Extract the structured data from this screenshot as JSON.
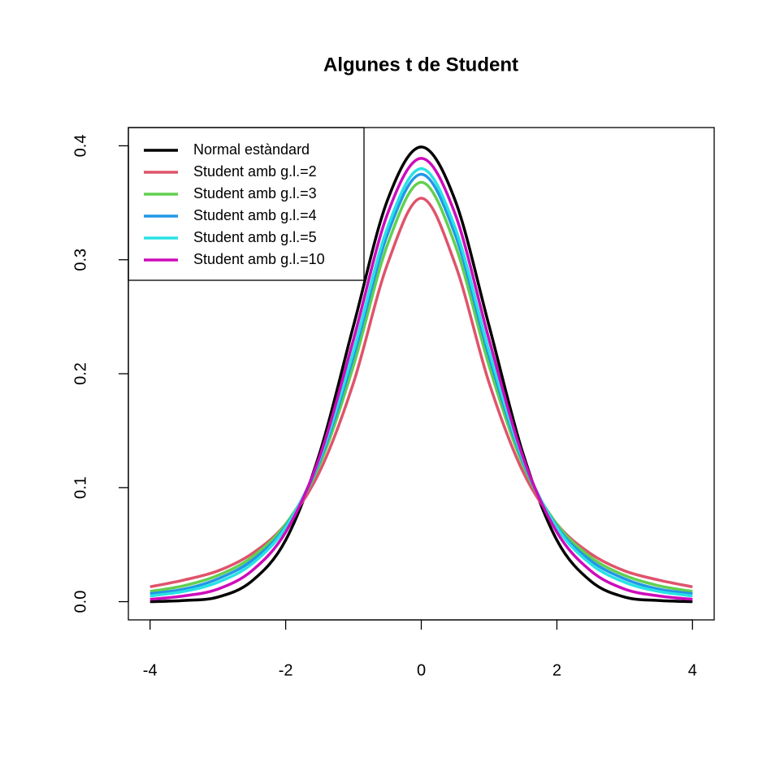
{
  "chart_data": {
    "type": "line",
    "title": "Algunes t de Student",
    "x": [
      -4,
      -3.5,
      -3,
      -2.5,
      -2,
      -1.5,
      -1,
      -0.5,
      0,
      0.5,
      1,
      1.5,
      2,
      2.5,
      3,
      3.5,
      4
    ],
    "series": [
      {
        "name": "Normal estàndard",
        "color": "#000000",
        "values": [
          0.0,
          0.001,
          0.004,
          0.018,
          0.054,
          0.13,
          0.242,
          0.352,
          0.399,
          0.352,
          0.242,
          0.13,
          0.054,
          0.018,
          0.004,
          0.001,
          0.0
        ]
      },
      {
        "name": "Student amb g.l.=2",
        "color": "#DF536B",
        "values": [
          0.013,
          0.019,
          0.027,
          0.042,
          0.068,
          0.114,
          0.192,
          0.296,
          0.354,
          0.296,
          0.192,
          0.114,
          0.068,
          0.042,
          0.027,
          0.019,
          0.013
        ]
      },
      {
        "name": "Student amb g.l.=3",
        "color": "#61D04F",
        "values": [
          0.009,
          0.014,
          0.023,
          0.039,
          0.068,
          0.12,
          0.207,
          0.313,
          0.368,
          0.313,
          0.207,
          0.12,
          0.068,
          0.039,
          0.023,
          0.014,
          0.009
        ]
      },
      {
        "name": "Student amb g.l.=4",
        "color": "#2297E6",
        "values": [
          0.007,
          0.011,
          0.02,
          0.036,
          0.066,
          0.123,
          0.215,
          0.322,
          0.375,
          0.322,
          0.215,
          0.123,
          0.066,
          0.036,
          0.02,
          0.011,
          0.007
        ]
      },
      {
        "name": "Student amb g.l.=5",
        "color": "#28E2E5",
        "values": [
          0.005,
          0.009,
          0.017,
          0.033,
          0.065,
          0.125,
          0.22,
          0.328,
          0.38,
          0.328,
          0.22,
          0.125,
          0.065,
          0.033,
          0.017,
          0.009,
          0.005
        ]
      },
      {
        "name": "Student amb g.l.=10",
        "color": "#CD0BBC",
        "values": [
          0.002,
          0.005,
          0.011,
          0.027,
          0.061,
          0.127,
          0.23,
          0.34,
          0.389,
          0.34,
          0.23,
          0.127,
          0.061,
          0.027,
          0.011,
          0.005,
          0.002
        ]
      }
    ],
    "xlim": [
      -4.32,
      4.32
    ],
    "xticks": [
      -4,
      -2,
      0,
      2,
      4
    ],
    "ylim": [
      -0.016,
      0.416
    ],
    "yticks": [
      0.0,
      0.1,
      0.2,
      0.3,
      0.4
    ],
    "legend": "topleft"
  }
}
